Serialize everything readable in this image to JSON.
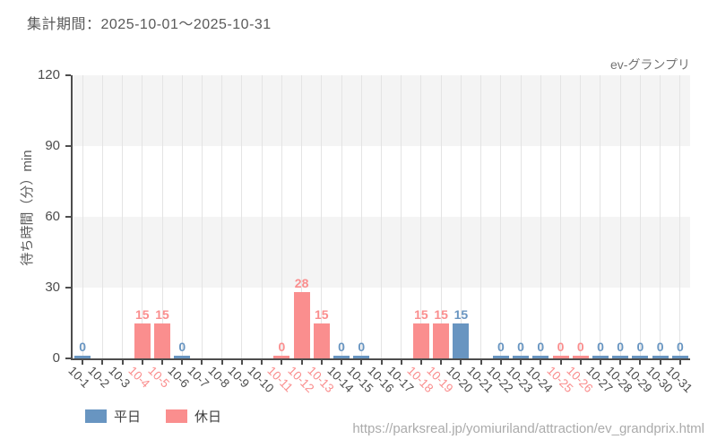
{
  "header": {
    "title": "集計期間：2025-10-01～2025-10-31"
  },
  "annotation": {
    "attraction_label": "ev-グランプリ"
  },
  "legend": [
    {
      "key": "weekday",
      "label": "平日",
      "color": "#6895c1"
    },
    {
      "key": "holiday",
      "label": "休日",
      "color": "#fa8e8e"
    }
  ],
  "footer": {
    "url": "https://parksreal.jp/yomiuriland/attraction/ev_grandprix.html"
  },
  "chart_data": {
    "type": "bar",
    "title": "",
    "xlabel": "",
    "ylabel": "待ち時間（分）min",
    "ylim": [
      0,
      120
    ],
    "yticks": [
      0,
      30,
      60,
      90,
      120
    ],
    "grid": "vertical gridlines with alternating horizontal gray bands (30-60, 90-120)",
    "legend_position": "bottom-left",
    "colors": {
      "weekday": "#6895c1",
      "holiday": "#fa8e8e",
      "weekday_tick_label": "#4d4d4d",
      "holiday_tick_label": "#fa8e8e",
      "band": "#f4f4f4",
      "gridline": "#e4e4e4",
      "spine": "#4d4d4d"
    },
    "categories": [
      "10-1",
      "10-2",
      "10-3",
      "10-4",
      "10-5",
      "10-6",
      "10-7",
      "10-8",
      "10-9",
      "10-10",
      "10-11",
      "10-12",
      "10-13",
      "10-14",
      "10-15",
      "10-16",
      "10-17",
      "10-18",
      "10-19",
      "10-20",
      "10-21",
      "10-22",
      "10-23",
      "10-24",
      "10-25",
      "10-26",
      "10-27",
      "10-28",
      "10-29",
      "10-30",
      "10-31"
    ],
    "points": [
      {
        "date": "10-1",
        "value": 0,
        "series": "weekday"
      },
      {
        "date": "10-2",
        "value": null,
        "series": "weekday"
      },
      {
        "date": "10-3",
        "value": null,
        "series": "weekday"
      },
      {
        "date": "10-4",
        "value": 15,
        "series": "holiday"
      },
      {
        "date": "10-5",
        "value": 15,
        "series": "holiday"
      },
      {
        "date": "10-6",
        "value": 0,
        "series": "weekday"
      },
      {
        "date": "10-7",
        "value": null,
        "series": "weekday"
      },
      {
        "date": "10-8",
        "value": null,
        "series": "weekday"
      },
      {
        "date": "10-9",
        "value": null,
        "series": "weekday"
      },
      {
        "date": "10-10",
        "value": null,
        "series": "weekday"
      },
      {
        "date": "10-11",
        "value": 0,
        "series": "holiday"
      },
      {
        "date": "10-12",
        "value": 28,
        "series": "holiday"
      },
      {
        "date": "10-13",
        "value": 15,
        "series": "holiday"
      },
      {
        "date": "10-14",
        "value": 0,
        "series": "weekday"
      },
      {
        "date": "10-15",
        "value": 0,
        "series": "weekday"
      },
      {
        "date": "10-16",
        "value": null,
        "series": "weekday"
      },
      {
        "date": "10-17",
        "value": null,
        "series": "weekday"
      },
      {
        "date": "10-18",
        "value": 15,
        "series": "holiday"
      },
      {
        "date": "10-19",
        "value": 15,
        "series": "holiday"
      },
      {
        "date": "10-20",
        "value": 15,
        "series": "weekday"
      },
      {
        "date": "10-21",
        "value": null,
        "series": "weekday"
      },
      {
        "date": "10-22",
        "value": 0,
        "series": "weekday"
      },
      {
        "date": "10-23",
        "value": 0,
        "series": "weekday"
      },
      {
        "date": "10-24",
        "value": 0,
        "series": "weekday"
      },
      {
        "date": "10-25",
        "value": 0,
        "series": "holiday"
      },
      {
        "date": "10-26",
        "value": 0,
        "series": "holiday"
      },
      {
        "date": "10-27",
        "value": 0,
        "series": "weekday"
      },
      {
        "date": "10-28",
        "value": 0,
        "series": "weekday"
      },
      {
        "date": "10-29",
        "value": 0,
        "series": "weekday"
      },
      {
        "date": "10-30",
        "value": 0,
        "series": "weekday"
      },
      {
        "date": "10-31",
        "value": 0,
        "series": "weekday"
      }
    ]
  }
}
